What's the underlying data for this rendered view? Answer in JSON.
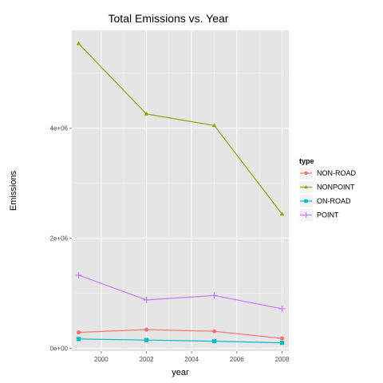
{
  "chart_data": {
    "type": "line",
    "title": "Total Emissions vs. Year",
    "xlabel": "year",
    "ylabel": "Emissions",
    "x": [
      1999,
      2002,
      2005,
      2008
    ],
    "xlim": [
      1998.7,
      2008.3
    ],
    "ylim": [
      -50000,
      5780000
    ],
    "x_ticks": [
      {
        "value": 2000,
        "label": "2000"
      },
      {
        "value": 2002,
        "label": "2002"
      },
      {
        "value": 2004,
        "label": "2004"
      },
      {
        "value": 2006,
        "label": "2006"
      },
      {
        "value": 2008,
        "label": "2008"
      }
    ],
    "y_ticks": [
      {
        "value": 0,
        "label": "0e+00"
      },
      {
        "value": 2000000,
        "label": "2e+06"
      },
      {
        "value": 4000000,
        "label": "4e+06"
      }
    ],
    "grid": true,
    "legend": {
      "title": "type",
      "placement": "right"
    },
    "series": [
      {
        "name": "NON-ROAD",
        "color": "#F8766D",
        "marker": "circle",
        "values": [
          290000,
          340000,
          310000,
          180000
        ]
      },
      {
        "name": "NONPOINT",
        "color": "#7CAE00",
        "marker": "triangle",
        "values": [
          5540000,
          4260000,
          4050000,
          2440000
        ]
      },
      {
        "name": "ON-ROAD",
        "color": "#00BFC4",
        "marker": "square",
        "values": [
          170000,
          150000,
          130000,
          100000
        ]
      },
      {
        "name": "POINT",
        "color": "#C77CFF",
        "marker": "plus",
        "values": [
          1330000,
          880000,
          960000,
          720000
        ]
      }
    ]
  }
}
